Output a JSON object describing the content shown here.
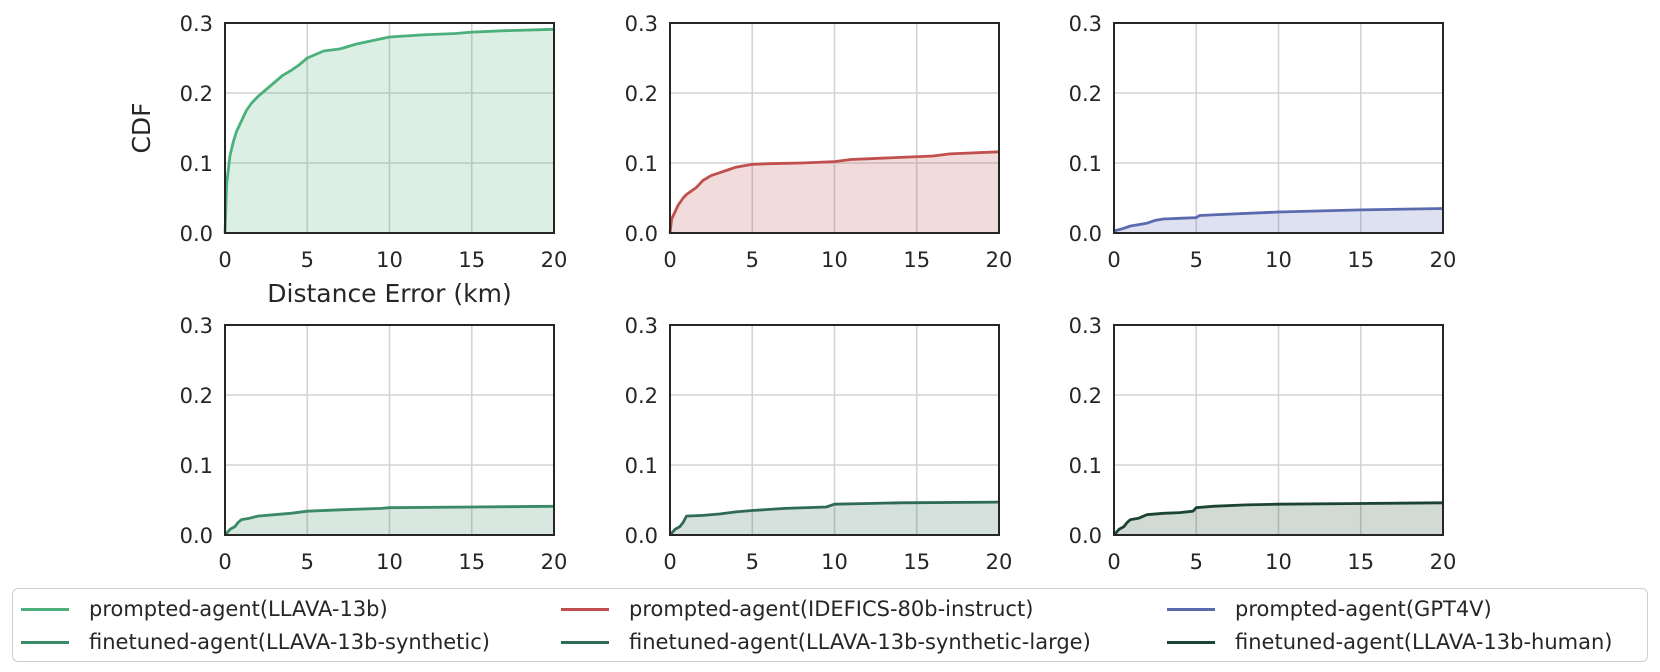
{
  "chart_data": [
    {
      "type": "area",
      "panel": 0,
      "color": "#4bb07b",
      "xlabel": "Distance Error (km)",
      "ylabel": "CDF",
      "xlim": [
        0,
        20
      ],
      "ylim": [
        0,
        0.3
      ],
      "xticks": [
        "0",
        "5",
        "10",
        "15",
        "20"
      ],
      "yticks": [
        "0.0",
        "0.1",
        "0.2",
        "0.3"
      ],
      "grid": true,
      "x": [
        0,
        0.1,
        0.2,
        0.3,
        0.5,
        0.7,
        1.0,
        1.3,
        1.6,
        2.0,
        2.5,
        3.0,
        3.5,
        4.0,
        4.5,
        5.0,
        5.5,
        6.0,
        7.0,
        8.0,
        9.0,
        10.0,
        12.0,
        14.0,
        15.0,
        17.0,
        20.0
      ],
      "y": [
        0,
        0.07,
        0.09,
        0.11,
        0.13,
        0.145,
        0.16,
        0.175,
        0.185,
        0.195,
        0.205,
        0.215,
        0.225,
        0.232,
        0.24,
        0.25,
        0.255,
        0.26,
        0.263,
        0.27,
        0.275,
        0.28,
        0.283,
        0.285,
        0.287,
        0.289,
        0.291
      ]
    },
    {
      "type": "area",
      "panel": 1,
      "color": "#c0504d",
      "xlabel": "",
      "ylabel": "",
      "xlim": [
        0,
        20
      ],
      "ylim": [
        0,
        0.3
      ],
      "xticks": [
        "0",
        "5",
        "10",
        "15",
        "20"
      ],
      "yticks": [
        "0.0",
        "0.1",
        "0.2",
        "0.3"
      ],
      "grid": true,
      "x": [
        0,
        0.1,
        0.3,
        0.5,
        0.8,
        1.0,
        1.3,
        1.6,
        2.0,
        2.5,
        3.0,
        3.5,
        4.0,
        4.5,
        5.0,
        6.0,
        8.0,
        10.0,
        11.0,
        12.0,
        14.0,
        16.0,
        17.0,
        20.0
      ],
      "y": [
        0,
        0.02,
        0.03,
        0.04,
        0.05,
        0.055,
        0.06,
        0.065,
        0.075,
        0.082,
        0.086,
        0.09,
        0.094,
        0.096,
        0.098,
        0.099,
        0.1,
        0.102,
        0.105,
        0.106,
        0.108,
        0.11,
        0.113,
        0.116
      ]
    },
    {
      "type": "area",
      "panel": 2,
      "color": "#5b6aaf",
      "xlabel": "",
      "ylabel": "",
      "xlim": [
        0,
        20
      ],
      "ylim": [
        0,
        0.3
      ],
      "xticks": [
        "0",
        "5",
        "10",
        "15",
        "20"
      ],
      "yticks": [
        "0.0",
        "0.1",
        "0.2",
        "0.3"
      ],
      "grid": true,
      "x": [
        0,
        0.5,
        1.0,
        1.5,
        2.0,
        2.5,
        3.0,
        4.0,
        5.0,
        5.2,
        7.0,
        10.0,
        15.0,
        20.0
      ],
      "y": [
        0.003,
        0.006,
        0.01,
        0.012,
        0.014,
        0.018,
        0.02,
        0.021,
        0.022,
        0.025,
        0.027,
        0.03,
        0.033,
        0.035
      ]
    },
    {
      "type": "area",
      "panel": 3,
      "color": "#3a8a68",
      "xlabel": "",
      "ylabel": "",
      "xlim": [
        0,
        20
      ],
      "ylim": [
        0,
        0.3
      ],
      "xticks": [
        "0",
        "5",
        "10",
        "15",
        "20"
      ],
      "yticks": [
        "0.0",
        "0.1",
        "0.2",
        "0.3"
      ],
      "grid": true,
      "x": [
        0,
        0.3,
        0.6,
        0.8,
        1.0,
        1.5,
        2.0,
        3.0,
        4.0,
        5.0,
        7.0,
        9.5,
        10.0,
        15.0,
        20.0
      ],
      "y": [
        0,
        0.008,
        0.012,
        0.018,
        0.022,
        0.024,
        0.027,
        0.029,
        0.031,
        0.034,
        0.036,
        0.038,
        0.039,
        0.04,
        0.041
      ]
    },
    {
      "type": "area",
      "panel": 4,
      "color": "#2f6b52",
      "xlabel": "",
      "ylabel": "",
      "xlim": [
        0,
        20
      ],
      "ylim": [
        0,
        0.3
      ],
      "xticks": [
        "0",
        "5",
        "10",
        "15",
        "20"
      ],
      "yticks": [
        "0.0",
        "0.1",
        "0.2",
        "0.3"
      ],
      "grid": true,
      "x": [
        0,
        0.3,
        0.6,
        0.8,
        1.0,
        2.0,
        3.0,
        4.0,
        5.0,
        7.0,
        9.5,
        10.0,
        12.0,
        14.0,
        20.0
      ],
      "y": [
        0,
        0.008,
        0.012,
        0.018,
        0.027,
        0.028,
        0.03,
        0.033,
        0.035,
        0.038,
        0.04,
        0.044,
        0.045,
        0.046,
        0.047
      ]
    },
    {
      "type": "area",
      "panel": 5,
      "color": "#1c4432",
      "xlabel": "",
      "ylabel": "",
      "xlim": [
        0,
        20
      ],
      "ylim": [
        0,
        0.3
      ],
      "xticks": [
        "0",
        "5",
        "10",
        "15",
        "20"
      ],
      "yticks": [
        "0.0",
        "0.1",
        "0.2",
        "0.3"
      ],
      "grid": true,
      "x": [
        0,
        0.3,
        0.6,
        0.8,
        1.0,
        1.5,
        2.0,
        3.0,
        4.0,
        4.8,
        5.0,
        6.0,
        8.0,
        10.0,
        15.0,
        20.0
      ],
      "y": [
        0,
        0.008,
        0.012,
        0.018,
        0.022,
        0.024,
        0.029,
        0.031,
        0.032,
        0.034,
        0.039,
        0.041,
        0.043,
        0.044,
        0.045,
        0.046
      ]
    }
  ],
  "legend": {
    "placement": "bottom",
    "items": [
      {
        "label": "prompted-agent(LLAVA-13b)",
        "color": "#4bb07b"
      },
      {
        "label": "prompted-agent(IDEFICS-80b-instruct)",
        "color": "#c0504d"
      },
      {
        "label": "prompted-agent(GPT4V)",
        "color": "#5b6aaf"
      },
      {
        "label": "finetuned-agent(LLAVA-13b-synthetic)",
        "color": "#3a8a68"
      },
      {
        "label": "finetuned-agent(LLAVA-13b-synthetic-large)",
        "color": "#2f6b52"
      },
      {
        "label": "finetuned-agent(LLAVA-13b-human)",
        "color": "#1c4432"
      }
    ]
  }
}
